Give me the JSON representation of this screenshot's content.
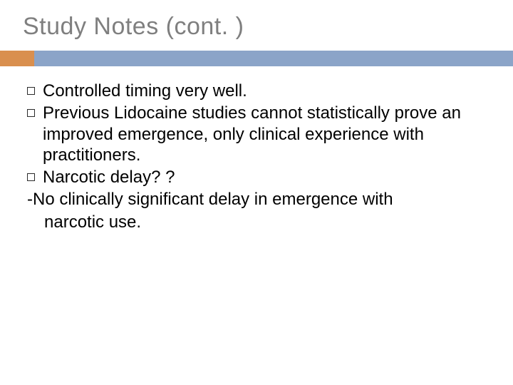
{
  "slide": {
    "title": "Study Notes (cont. )",
    "title_color": "#7f7f7f",
    "title_fontsize": 34,
    "divider_color": "#8ba4c8",
    "accent_color": "#d98f4e",
    "body_fontsize": 24,
    "body_color": "#000000",
    "background_color": "#ffffff",
    "bullets": [
      "Controlled timing very well.",
      "Previous Lidocaine studies cannot statistically prove an improved emergence, only clinical experience with practitioners.",
      "Narcotic delay? ?"
    ],
    "trailing_text": "-No clinically significant delay in emergence with",
    "trailing_text_line2": "narcotic use."
  }
}
